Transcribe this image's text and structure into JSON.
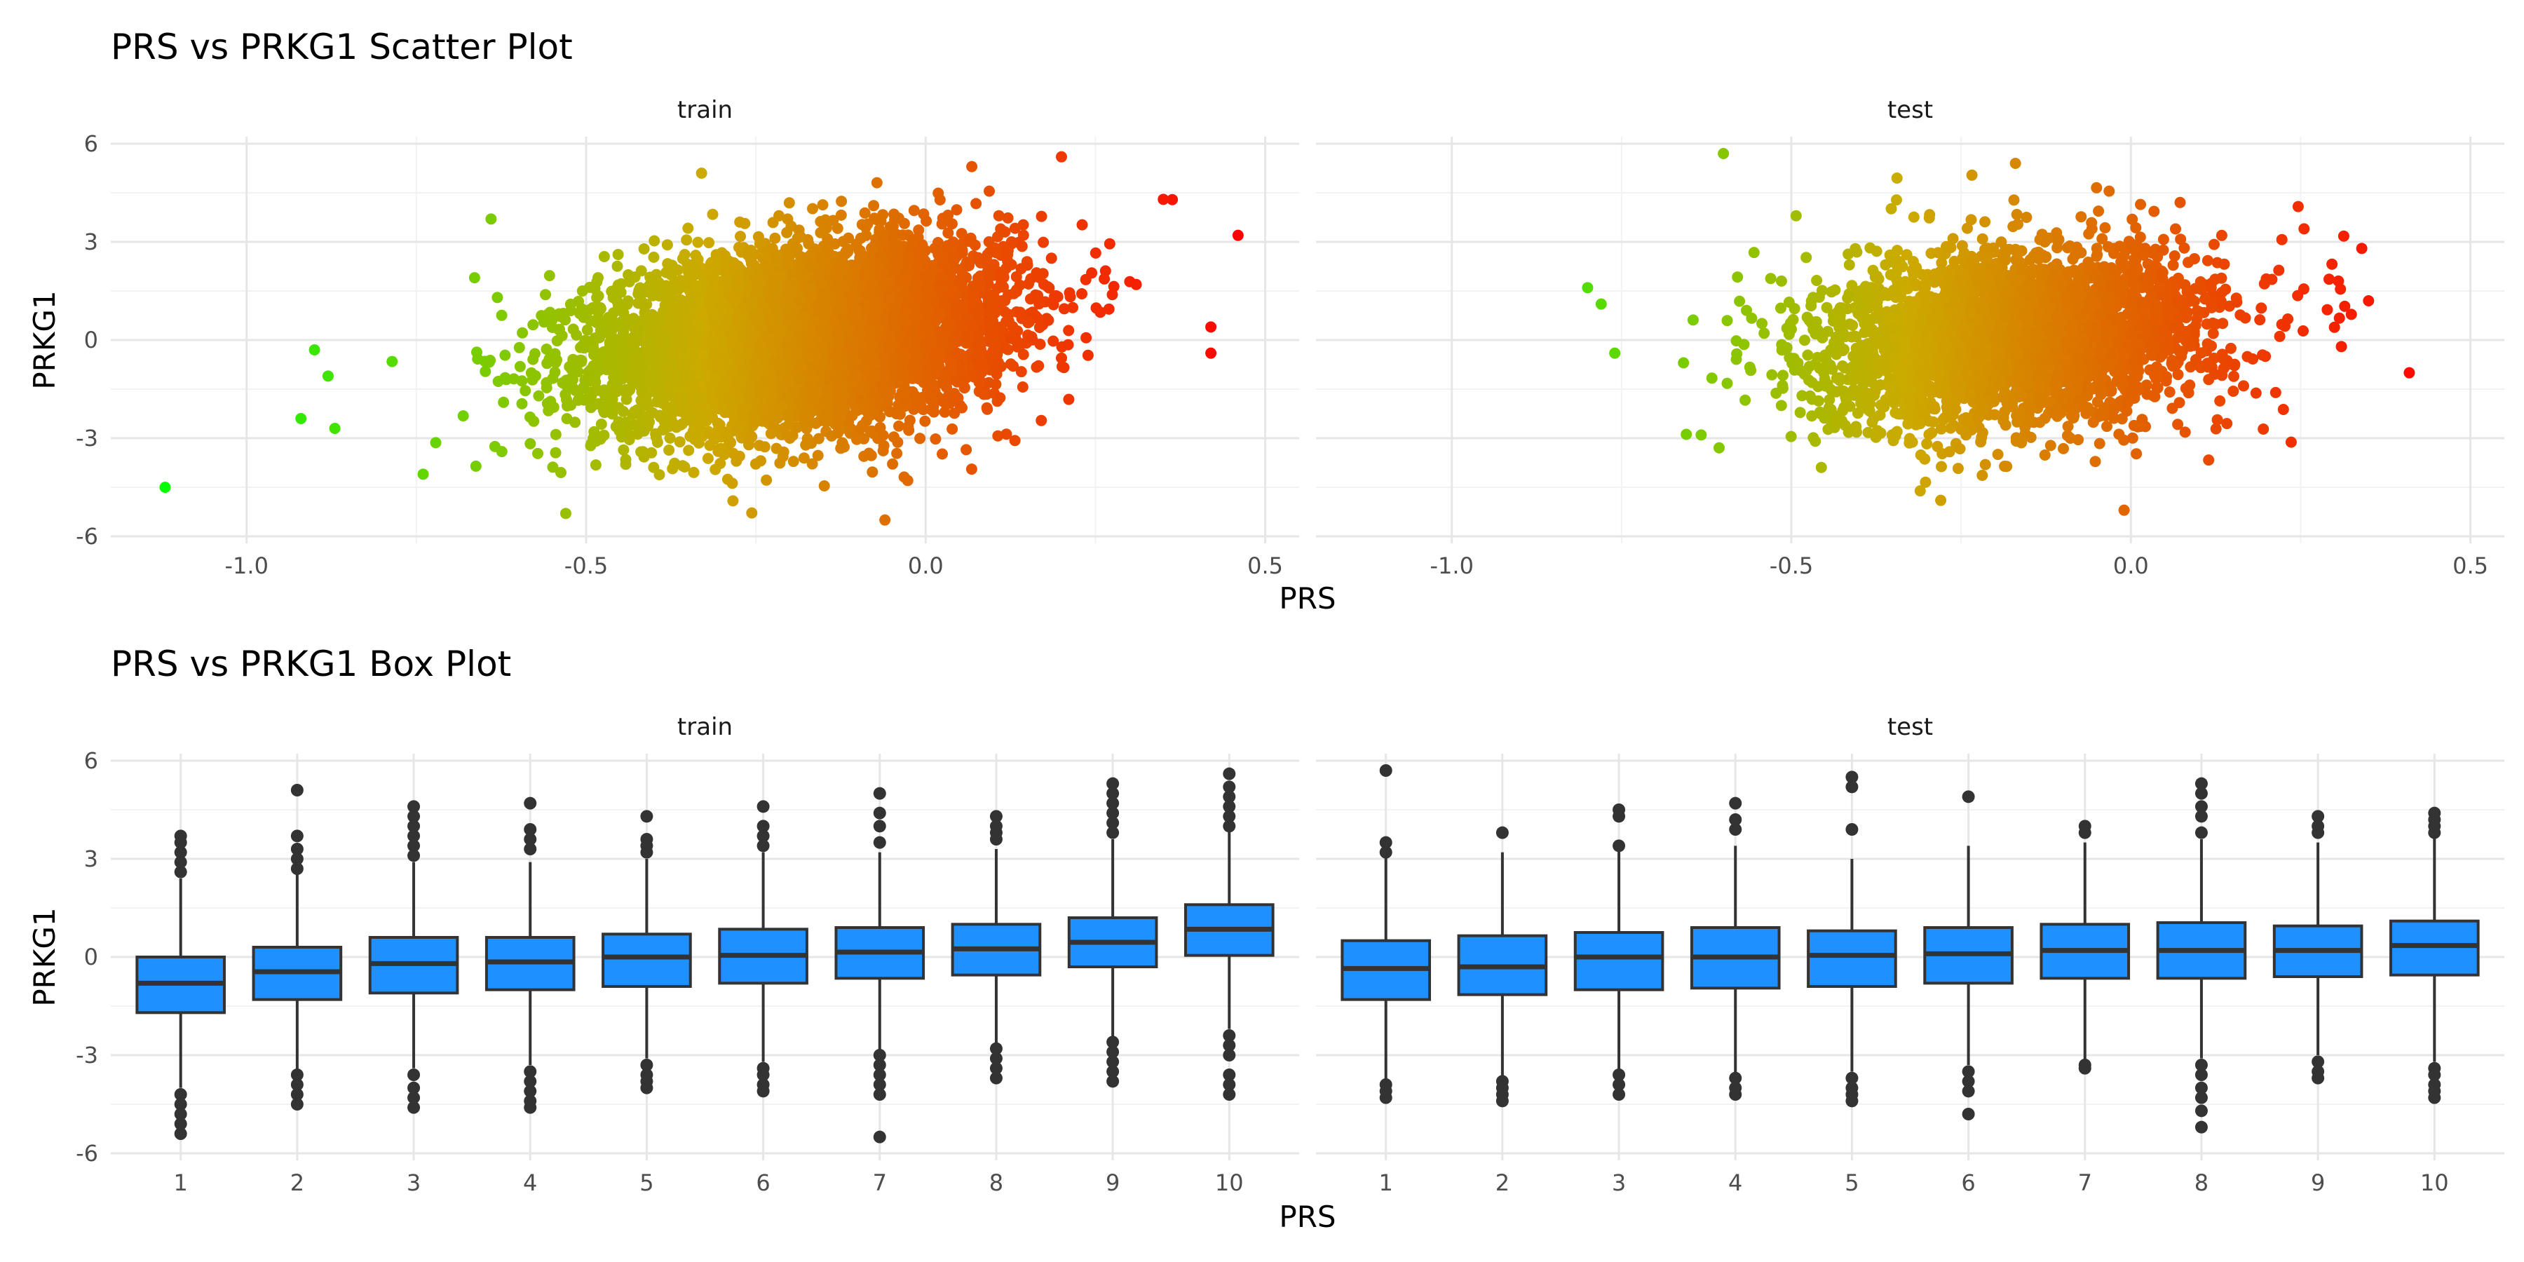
{
  "chart_data": [
    {
      "type": "scatter",
      "title": "PRS vs PRKG1 Scatter Plot",
      "xlabel": "PRS",
      "ylabel": "PRKG1",
      "xlim": [
        -1.2,
        0.55
      ],
      "ylim": [
        -6,
        6
      ],
      "x_ticks": [
        "-1.0",
        "-0.5",
        "0.0",
        "0.5"
      ],
      "x_tick_values": [
        -1.0,
        -0.5,
        0.0,
        0.5
      ],
      "y_ticks": [
        "6",
        "3",
        "0",
        "-3",
        "-6"
      ],
      "y_tick_values": [
        6,
        3,
        0,
        -3,
        -6
      ],
      "grid": true,
      "legend": "none",
      "color_gradient": {
        "low": "#00ff00",
        "mid": "#ccaa00",
        "high": "#ff0000",
        "low_x": -1.12,
        "high_x": 0.46
      },
      "panels": [
        {
          "name": "train",
          "cloud": {
            "x_center": -0.18,
            "x_sd": 0.15,
            "y_intercept": 0.1,
            "y_slope": 2.3,
            "y_sd": 1.35,
            "n": 6000
          },
          "outliers": [
            {
              "x": -1.12,
              "y": -4.5
            },
            {
              "x": -0.92,
              "y": -2.4
            },
            {
              "x": -0.87,
              "y": -2.7
            },
            {
              "x": -0.9,
              "y": -0.3
            },
            {
              "x": -0.88,
              "y": -1.1
            },
            {
              "x": 0.46,
              "y": 3.2
            },
            {
              "x": 0.42,
              "y": 0.4
            },
            {
              "x": 0.42,
              "y": -0.4
            },
            {
              "x": -0.64,
              "y": 3.7
            },
            {
              "x": -0.33,
              "y": 5.1
            },
            {
              "x": -0.06,
              "y": -5.5
            },
            {
              "x": 0.2,
              "y": 5.6
            },
            {
              "x": -0.53,
              "y": -5.3
            },
            {
              "x": -0.74,
              "y": -4.1
            },
            {
              "x": 0.35,
              "y": 4.3
            }
          ]
        },
        {
          "name": "test",
          "cloud": {
            "x_center": -0.17,
            "x_sd": 0.15,
            "y_intercept": 0.05,
            "y_slope": 1.7,
            "y_sd": 1.35,
            "n": 3000
          },
          "outliers": [
            {
              "x": -0.6,
              "y": 5.7
            },
            {
              "x": 0.41,
              "y": -1.0
            },
            {
              "x": -0.78,
              "y": 1.1
            },
            {
              "x": -0.8,
              "y": 1.6
            },
            {
              "x": -0.01,
              "y": -5.2
            },
            {
              "x": 0.34,
              "y": 2.8
            },
            {
              "x": 0.35,
              "y": 1.2
            },
            {
              "x": -0.28,
              "y": -4.9
            },
            {
              "x": -0.17,
              "y": 5.4
            },
            {
              "x": -0.76,
              "y": -0.4
            },
            {
              "x": 0.31,
              "y": -0.2
            }
          ]
        }
      ]
    },
    {
      "type": "box",
      "title": "PRS vs PRKG1 Box Plot",
      "xlabel": "PRS",
      "ylabel": "PRKG1",
      "ylim": [
        -6,
        6
      ],
      "y_ticks": [
        "6",
        "3",
        "0",
        "-3",
        "-6"
      ],
      "y_tick_values": [
        6,
        3,
        0,
        -3,
        -6
      ],
      "categories": [
        "1",
        "2",
        "3",
        "4",
        "5",
        "6",
        "7",
        "8",
        "9",
        "10"
      ],
      "box_fill": "#1e90ff",
      "grid": true,
      "legend": "none",
      "panels": [
        {
          "name": "train",
          "boxes": [
            {
              "q1": -1.7,
              "median": -0.8,
              "q3": 0.0,
              "low": -4.0,
              "high": 2.4,
              "outliers": [
                3.7,
                3.5,
                3.2,
                2.9,
                2.6,
                -4.2,
                -4.5,
                -4.8,
                -5.1,
                -5.4
              ]
            },
            {
              "q1": -1.3,
              "median": -0.45,
              "q3": 0.3,
              "low": -3.5,
              "high": 2.6,
              "outliers": [
                5.1,
                3.7,
                3.3,
                3.0,
                2.7,
                -3.6,
                -3.9,
                -4.2,
                -4.5
              ]
            },
            {
              "q1": -1.1,
              "median": -0.2,
              "q3": 0.6,
              "low": -3.4,
              "high": 2.9,
              "outliers": [
                4.6,
                4.3,
                4.0,
                3.7,
                3.4,
                3.1,
                -3.6,
                -4.0,
                -4.3,
                -4.6
              ]
            },
            {
              "q1": -1.0,
              "median": -0.15,
              "q3": 0.6,
              "low": -3.3,
              "high": 2.9,
              "outliers": [
                4.7,
                3.9,
                3.6,
                3.3,
                -3.5,
                -3.8,
                -4.1,
                -4.4,
                -4.6
              ]
            },
            {
              "q1": -0.9,
              "median": 0.0,
              "q3": 0.7,
              "low": -3.1,
              "high": 3.0,
              "outliers": [
                4.3,
                3.6,
                3.4,
                3.2,
                -3.3,
                -3.6,
                -3.8,
                -4.0
              ]
            },
            {
              "q1": -0.8,
              "median": 0.05,
              "q3": 0.85,
              "low": -3.2,
              "high": 3.2,
              "outliers": [
                4.6,
                4.0,
                3.7,
                3.4,
                -3.4,
                -3.6,
                -3.9,
                -4.1
              ]
            },
            {
              "q1": -0.65,
              "median": 0.15,
              "q3": 0.9,
              "low": -2.9,
              "high": 3.2,
              "outliers": [
                5.0,
                4.4,
                4.0,
                3.5,
                -3.0,
                -3.3,
                -3.6,
                -3.9,
                -4.2,
                -5.5
              ]
            },
            {
              "q1": -0.55,
              "median": 0.25,
              "q3": 1.0,
              "low": -2.7,
              "high": 3.3,
              "outliers": [
                4.3,
                4.0,
                3.8,
                3.6,
                -2.8,
                -3.1,
                -3.4,
                -3.7
              ]
            },
            {
              "q1": -0.3,
              "median": 0.45,
              "q3": 1.2,
              "low": -2.5,
              "high": 3.6,
              "outliers": [
                5.3,
                5.0,
                4.7,
                4.4,
                4.1,
                3.8,
                -2.6,
                -2.9,
                -3.2,
                -3.5,
                -3.8
              ]
            },
            {
              "q1": 0.05,
              "median": 0.85,
              "q3": 1.6,
              "low": -2.2,
              "high": 3.9,
              "outliers": [
                5.6,
                5.2,
                4.9,
                4.6,
                4.3,
                4.0,
                -2.4,
                -2.7,
                -3.0,
                -3.6,
                -3.9,
                -4.2
              ]
            }
          ]
        },
        {
          "name": "test",
          "boxes": [
            {
              "q1": -1.3,
              "median": -0.35,
              "q3": 0.5,
              "low": -3.8,
              "high": 3.1,
              "outliers": [
                5.7,
                3.5,
                3.2,
                -3.9,
                -4.1,
                -4.3
              ]
            },
            {
              "q1": -1.15,
              "median": -0.3,
              "q3": 0.65,
              "low": -3.7,
              "high": 3.2,
              "outliers": [
                3.8,
                -3.8,
                -4.0,
                -4.2,
                -4.4
              ]
            },
            {
              "q1": -1.0,
              "median": 0.0,
              "q3": 0.75,
              "low": -3.5,
              "high": 3.3,
              "outliers": [
                4.5,
                4.3,
                3.4,
                -3.6,
                -3.9,
                -4.2
              ]
            },
            {
              "q1": -0.95,
              "median": 0.0,
              "q3": 0.9,
              "low": -3.6,
              "high": 3.4,
              "outliers": [
                4.7,
                4.2,
                3.9,
                -3.7,
                -4.0,
                -4.2
              ]
            },
            {
              "q1": -0.9,
              "median": 0.05,
              "q3": 0.8,
              "low": -3.5,
              "high": 3.0,
              "outliers": [
                5.5,
                5.2,
                3.9,
                -3.7,
                -4.0,
                -4.2,
                -4.4
              ]
            },
            {
              "q1": -0.8,
              "median": 0.1,
              "q3": 0.9,
              "low": -3.3,
              "high": 3.4,
              "outliers": [
                4.9,
                -3.5,
                -3.8,
                -4.1,
                -4.8
              ]
            },
            {
              "q1": -0.65,
              "median": 0.2,
              "q3": 1.0,
              "low": -3.2,
              "high": 3.5,
              "outliers": [
                4.0,
                3.8,
                -3.3,
                -3.4
              ]
            },
            {
              "q1": -0.65,
              "median": 0.2,
              "q3": 1.05,
              "low": -3.1,
              "high": 3.6,
              "outliers": [
                5.3,
                5.0,
                4.6,
                4.3,
                3.8,
                -3.3,
                -3.6,
                -4.0,
                -4.3,
                -4.7,
                -5.2
              ]
            },
            {
              "q1": -0.6,
              "median": 0.2,
              "q3": 0.95,
              "low": -3.0,
              "high": 3.5,
              "outliers": [
                4.3,
                4.0,
                3.8,
                -3.2,
                -3.5,
                -3.7
              ]
            },
            {
              "q1": -0.55,
              "median": 0.35,
              "q3": 1.1,
              "low": -3.2,
              "high": 3.7,
              "outliers": [
                4.4,
                4.2,
                4.0,
                3.8,
                -3.4,
                -3.6,
                -3.9,
                -4.1,
                -4.3
              ]
            }
          ]
        }
      ]
    }
  ]
}
